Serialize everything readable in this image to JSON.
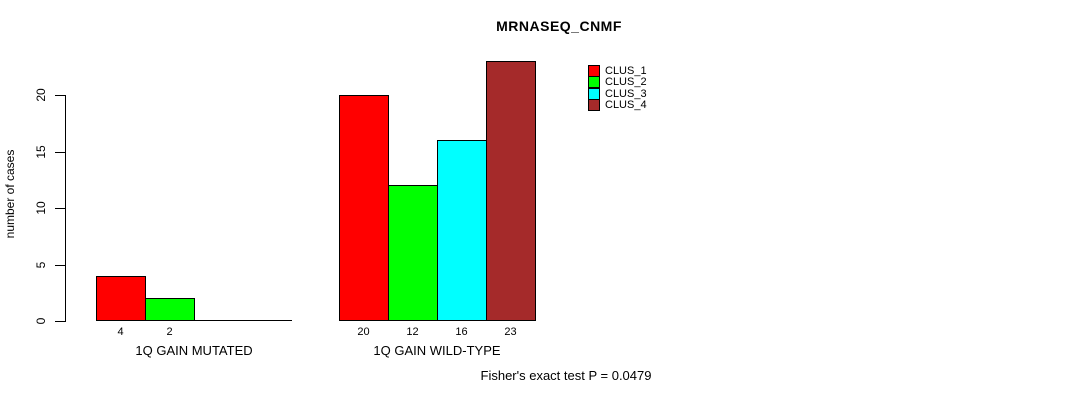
{
  "figure": {
    "title": "MRNASEQ_CNMF",
    "y_axis_label": "number of cases",
    "annotation": "Fisher's exact test P = 0.0479"
  },
  "legend": {
    "items": [
      {
        "label": "CLUS_1",
        "color": "#FF0000"
      },
      {
        "label": "CLUS_2",
        "color": "#00FF00"
      },
      {
        "label": "CLUS_3",
        "color": "#00FFFF"
      },
      {
        "label": "CLUS_4",
        "color": "#A52A2A"
      }
    ]
  },
  "chart_data": {
    "type": "bar",
    "title": "MRNASEQ_CNMF",
    "ylabel": "number of cases",
    "xlabel": "",
    "categories": [
      "1Q GAIN MUTATED",
      "1Q GAIN WILD-TYPE"
    ],
    "series": [
      {
        "name": "CLUS_1",
        "color": "#FF0000",
        "values": [
          4,
          20
        ]
      },
      {
        "name": "CLUS_2",
        "color": "#00FF00",
        "values": [
          2,
          12
        ]
      },
      {
        "name": "CLUS_3",
        "color": "#00FFFF",
        "values": [
          0,
          16
        ]
      },
      {
        "name": "CLUS_4",
        "color": "#A52A2A",
        "values": [
          0,
          23
        ]
      }
    ],
    "yticks": [
      0,
      5,
      10,
      15,
      20
    ],
    "ylim": [
      0,
      23
    ],
    "grid": false,
    "legend_position": "top-right-inside",
    "bar_border_color": "#000000",
    "axis_color": "#000000",
    "annotation": "Fisher's exact test P = 0.0479",
    "value_labels_shown_for_positive_bars_only": true
  }
}
